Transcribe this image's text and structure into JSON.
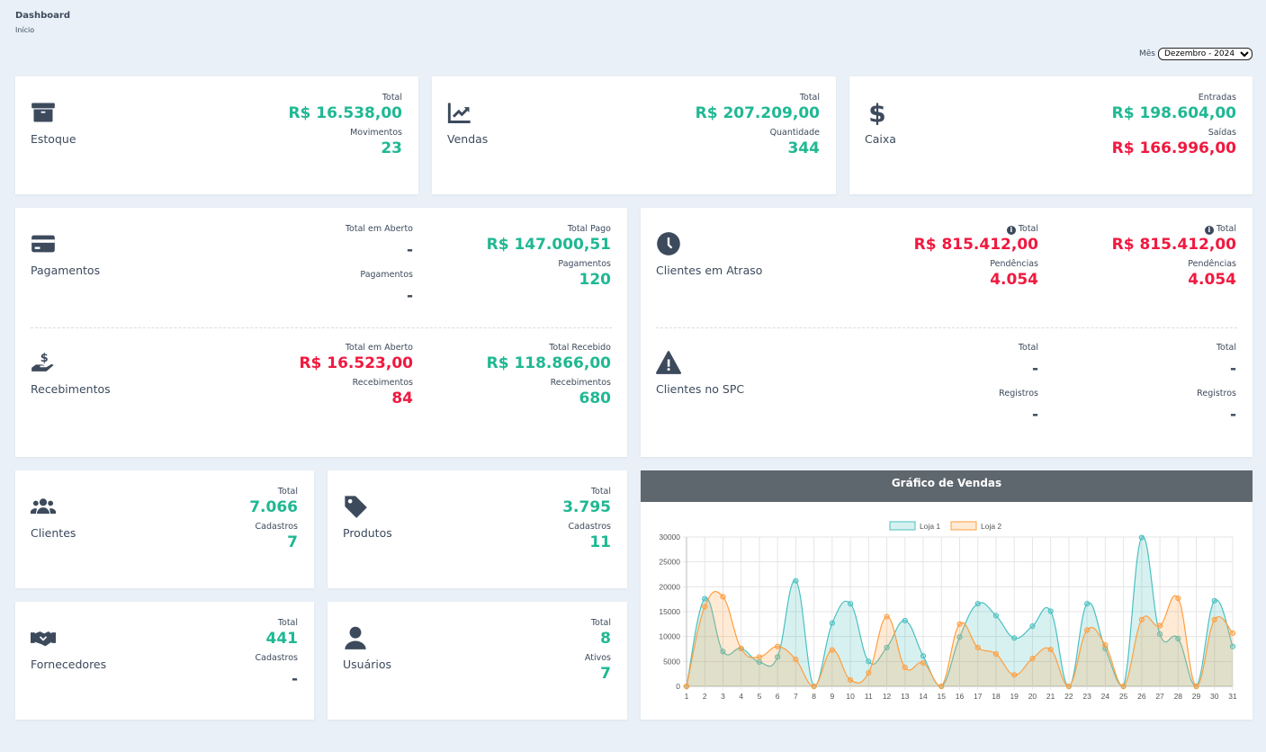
{
  "header": {
    "title": "Dashboard",
    "breadcrumb": "Início"
  },
  "month_filter": {
    "label": "Mês",
    "selected": "Dezembro - 2024"
  },
  "colors": {
    "green": "#1fb893",
    "red": "#f0193f",
    "dark": "#3c4a5c",
    "loja1": "#4bc0c0",
    "loja2": "#ff9f40"
  },
  "cards": {
    "estoque": {
      "title": "Estoque",
      "icon": "archive-box-icon",
      "cols": [
        [
          {
            "label": "Total",
            "value": "R$ 16.538,00",
            "color": "green"
          },
          {
            "label": "Movimentos",
            "value": "23",
            "color": "green"
          }
        ]
      ]
    },
    "vendas": {
      "title": "Vendas",
      "icon": "chart-line-icon",
      "cols": [
        [
          {
            "label": "Total",
            "value": "R$ 207.209,00",
            "color": "green"
          },
          {
            "label": "Quantidade",
            "value": "344",
            "color": "green"
          }
        ]
      ]
    },
    "caixa": {
      "title": "Caixa",
      "icon": "dollar-icon",
      "cols": [
        [
          {
            "label": "Entradas",
            "value": "R$ 198.604,00",
            "color": "green"
          },
          {
            "label": "Saídas",
            "value": "R$ 166.996,00",
            "color": "red"
          }
        ]
      ]
    },
    "pagamentos": {
      "title": "Pagamentos",
      "icon": "credit-card-icon",
      "cols": [
        [
          {
            "label": "Total em Aberto",
            "value": "-",
            "color": "dark"
          },
          {
            "label": "Pagamentos",
            "value": "-",
            "color": "dark"
          }
        ],
        [
          {
            "label": "Total Pago",
            "value": "R$ 147.000,51",
            "color": "green"
          },
          {
            "label": "Pagamentos",
            "value": "120",
            "color": "green"
          }
        ]
      ]
    },
    "recebimentos": {
      "title": "Recebimentos",
      "icon": "hand-dollar-icon",
      "cols": [
        [
          {
            "label": "Total em Aberto",
            "value": "R$ 16.523,00",
            "color": "red"
          },
          {
            "label": "Recebimentos",
            "value": "84",
            "color": "red"
          }
        ],
        [
          {
            "label": "Total Recebido",
            "value": "R$ 118.866,00",
            "color": "green"
          },
          {
            "label": "Recebimentos",
            "value": "680",
            "color": "green"
          }
        ]
      ]
    },
    "clientes_atraso": {
      "title": "Clientes em Atraso",
      "icon": "clock-icon",
      "cols": [
        [
          {
            "label": "Total",
            "value": "R$ 815.412,00",
            "color": "red",
            "info": true
          },
          {
            "label": "Pendências",
            "value": "4.054",
            "color": "red"
          }
        ],
        [
          {
            "label": "Total",
            "value": "R$ 815.412,00",
            "color": "red",
            "info": true
          },
          {
            "label": "Pendências",
            "value": "4.054",
            "color": "red"
          }
        ]
      ]
    },
    "clientes_spc": {
      "title": "Clientes no SPC",
      "icon": "warning-icon",
      "cols": [
        [
          {
            "label": "Total",
            "value": "-",
            "color": "dark"
          },
          {
            "label": "Registros",
            "value": "-",
            "color": "dark"
          }
        ],
        [
          {
            "label": "Total",
            "value": "-",
            "color": "dark"
          },
          {
            "label": "Registros",
            "value": "-",
            "color": "dark"
          }
        ]
      ]
    },
    "clientes": {
      "title": "Clientes",
      "icon": "users-icon",
      "cols": [
        [
          {
            "label": "Total",
            "value": "7.066",
            "color": "green"
          },
          {
            "label": "Cadastros",
            "value": "7",
            "color": "green"
          }
        ]
      ]
    },
    "produtos": {
      "title": "Produtos",
      "icon": "tag-icon",
      "cols": [
        [
          {
            "label": "Total",
            "value": "3.795",
            "color": "green"
          },
          {
            "label": "Cadastros",
            "value": "11",
            "color": "green"
          }
        ]
      ]
    },
    "fornecedores": {
      "title": "Fornecedores",
      "icon": "handshake-icon",
      "cols": [
        [
          {
            "label": "Total",
            "value": "441",
            "color": "green"
          },
          {
            "label": "Cadastros",
            "value": "-",
            "color": "dark"
          }
        ]
      ]
    },
    "usuarios": {
      "title": "Usuários",
      "icon": "user-icon",
      "cols": [
        [
          {
            "label": "Total",
            "value": "8",
            "color": "green"
          },
          {
            "label": "Ativos",
            "value": "7",
            "color": "green"
          }
        ]
      ]
    }
  },
  "chart_data": {
    "type": "area",
    "title": "Gráfico de Vendas",
    "legend_position": "top",
    "grid": true,
    "ylim": [
      0,
      30000
    ],
    "yticks": [
      0,
      5000,
      10000,
      15000,
      20000,
      25000,
      30000
    ],
    "x": [
      1,
      2,
      3,
      4,
      5,
      6,
      7,
      8,
      9,
      10,
      11,
      12,
      13,
      14,
      15,
      16,
      17,
      18,
      19,
      20,
      21,
      22,
      23,
      24,
      25,
      26,
      27,
      28,
      29,
      30,
      31
    ],
    "series": [
      {
        "name": "Loja 1",
        "color": "#4bc0c0",
        "values": [
          0,
          17600,
          7000,
          7600,
          4900,
          5900,
          21200,
          0,
          12700,
          16600,
          5000,
          7800,
          13200,
          6100,
          0,
          9900,
          16600,
          14200,
          9700,
          12100,
          15100,
          0,
          16600,
          7600,
          0,
          29900,
          10500,
          9600,
          0,
          17200,
          8000
        ]
      },
      {
        "name": "Loja 2",
        "color": "#ff9f40",
        "values": [
          0,
          16000,
          18000,
          7600,
          5900,
          8000,
          5400,
          0,
          7300,
          1300,
          2700,
          14000,
          3800,
          4700,
          0,
          12500,
          7800,
          6500,
          2300,
          5600,
          7400,
          0,
          11300,
          8300,
          0,
          13400,
          12200,
          17700,
          0,
          13400,
          10700
        ]
      }
    ]
  }
}
